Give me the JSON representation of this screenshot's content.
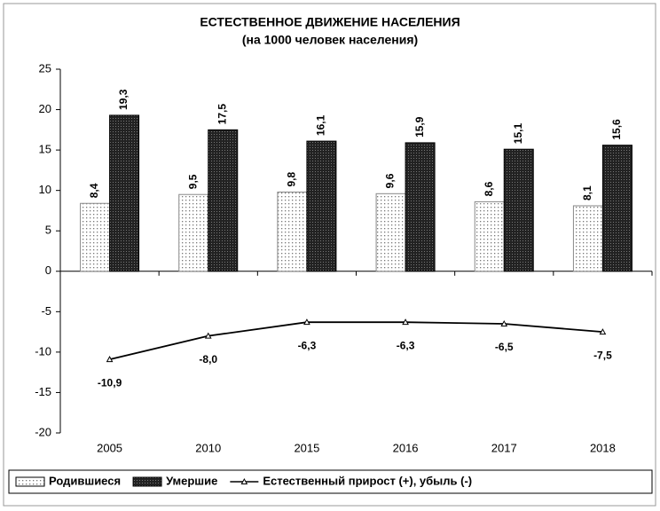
{
  "chart_data": {
    "type": "bar",
    "title": "ЕСТЕСТВЕННОЕ ДВИЖЕНИЕ НАСЕЛЕНИЯ",
    "subtitle": "(на 1000 человек населения)",
    "categories": [
      "2005",
      "2010",
      "2015",
      "2016",
      "2017",
      "2018"
    ],
    "series": [
      {
        "name": "Родившиеся",
        "color": "#d9d9d9",
        "values": [
          8.4,
          9.5,
          9.8,
          9.6,
          8.6,
          8.1
        ],
        "value_labels": [
          "8,4",
          "9,5",
          "9,8",
          "9,6",
          "8,6",
          "8,1"
        ]
      },
      {
        "name": "Умершие",
        "color": "#2a2a2a",
        "values": [
          19.3,
          17.5,
          16.1,
          15.9,
          15.1,
          15.6
        ],
        "value_labels": [
          "19,3",
          "17,5",
          "16,1",
          "15,9",
          "15,1",
          "15,6"
        ]
      },
      {
        "name": "Естественный прирост (+), убыль (-)",
        "type": "line",
        "color": "#000000",
        "values": [
          -10.9,
          -8.0,
          -6.3,
          -6.3,
          -6.5,
          -7.5
        ],
        "value_labels": [
          "-10,9",
          "-8,0",
          "-6,3",
          "-6,3",
          "-6,5",
          "-7,5"
        ]
      }
    ],
    "ylim": [
      -20,
      25
    ],
    "yticks": [
      -20,
      -15,
      -10,
      -5,
      0,
      5,
      10,
      15,
      20,
      25
    ],
    "grid": false,
    "legend": "bottom"
  }
}
